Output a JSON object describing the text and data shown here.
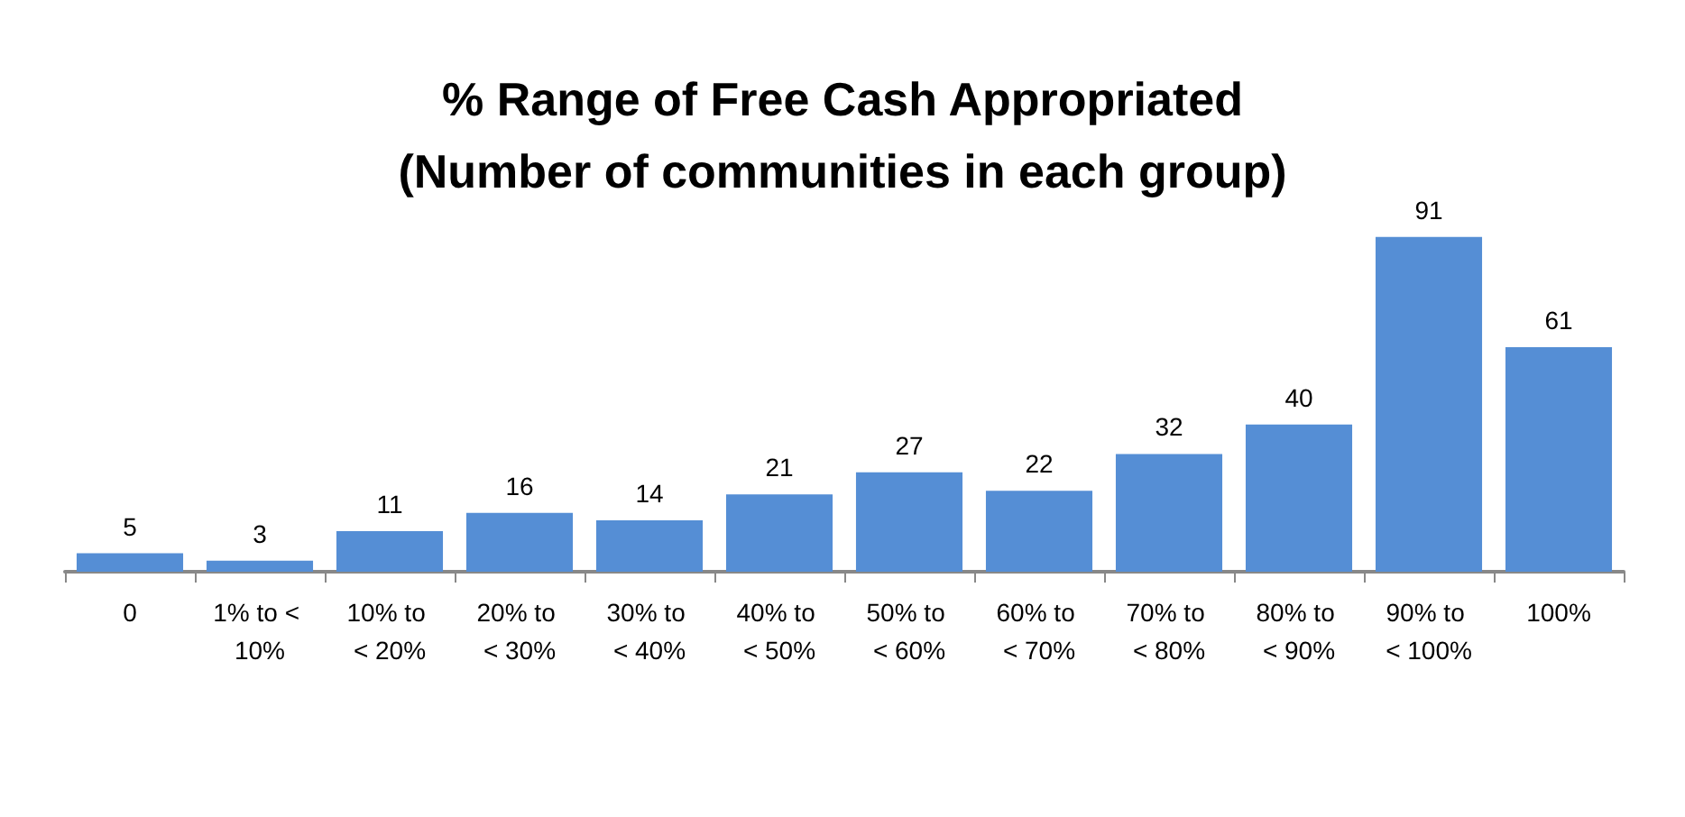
{
  "chart_data": {
    "type": "bar",
    "title": "% Range of Free Cash Appropriated\n(Number of communities in each group)",
    "categories": [
      "0",
      "1% to < 10%",
      "10% to < 20%",
      "20% to < 30%",
      "30% to < 40%",
      "40% to < 50%",
      "50% to < 60%",
      "60% to < 70%",
      "70% to < 80%",
      "80% to < 90%",
      "90% to < 100%",
      "100%"
    ],
    "values": [
      5,
      3,
      11,
      16,
      14,
      21,
      27,
      22,
      32,
      40,
      91,
      61
    ],
    "color": "#558ed5",
    "data_labels": true
  }
}
